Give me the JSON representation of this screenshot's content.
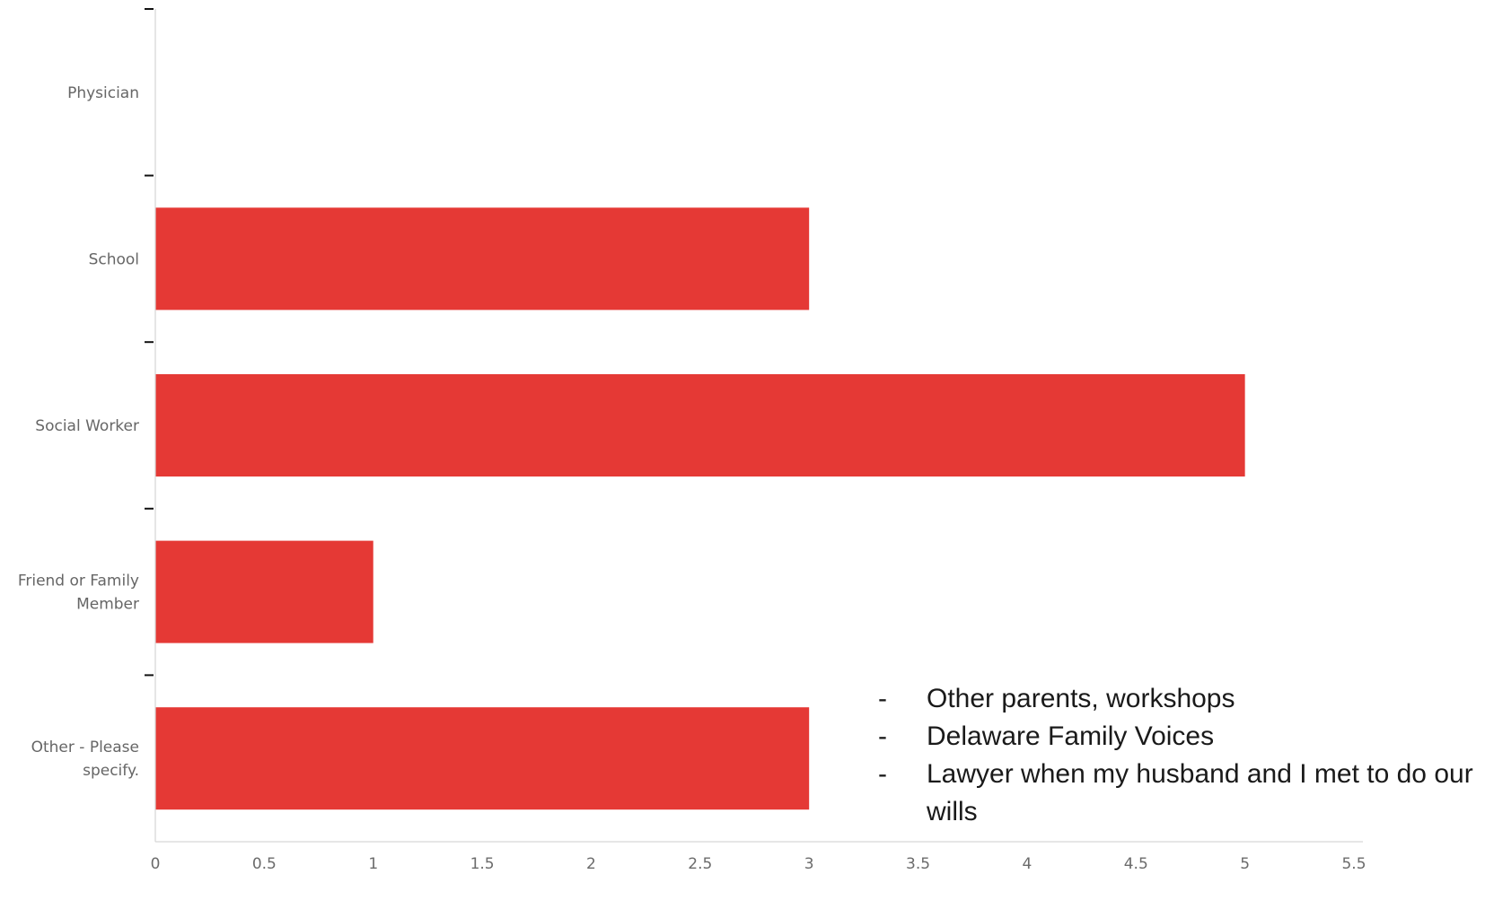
{
  "chart_data": {
    "type": "bar",
    "orientation": "horizontal",
    "categories": [
      [
        "Physician"
      ],
      [
        "School"
      ],
      [
        "Social Worker"
      ],
      [
        "Friend or Family",
        "Member"
      ],
      [
        "Other - Please",
        "specify."
      ]
    ],
    "values": [
      0,
      3,
      5,
      1,
      3
    ],
    "xlim": [
      0,
      5.5
    ],
    "xticks": [
      "0",
      "0.5",
      "1",
      "1.5",
      "2",
      "2.5",
      "3",
      "3.5",
      "4",
      "4.5",
      "5",
      "5.5"
    ],
    "bar_color": "#e53935",
    "grid": false,
    "title": "",
    "xlabel": "",
    "ylabel": ""
  },
  "annotation": {
    "dash": "-",
    "items": [
      "Other parents, workshops",
      "Delaware Family Voices",
      "Lawyer when my husband and I met to do our wills"
    ]
  }
}
